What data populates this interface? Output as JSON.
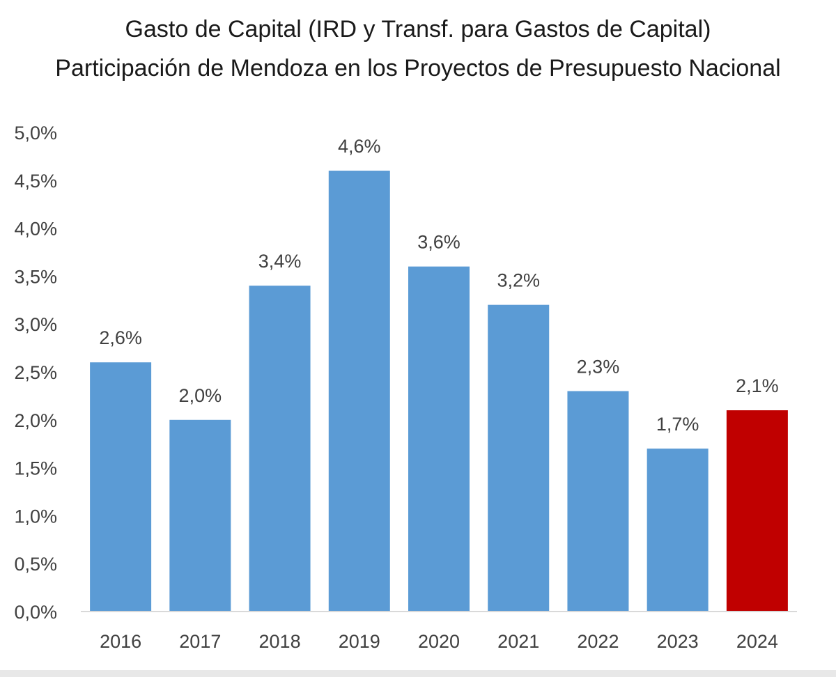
{
  "chart_data": {
    "type": "bar",
    "title": "Gasto de Capital (IRD y Transf. para Gastos de Capital)",
    "subtitle": "Participación de Mendoza en los Proyectos de Presupuesto Nacional",
    "xlabel": "",
    "ylabel": "",
    "categories": [
      "2016",
      "2017",
      "2018",
      "2019",
      "2020",
      "2021",
      "2022",
      "2023",
      "2024"
    ],
    "values": [
      2.6,
      2.0,
      3.4,
      4.6,
      3.6,
      3.2,
      2.3,
      1.7,
      2.1
    ],
    "value_labels": [
      "2,6%",
      "2,0%",
      "3,4%",
      "4,6%",
      "3,6%",
      "3,2%",
      "2,3%",
      "1,7%",
      "2,1%"
    ],
    "ylim": [
      0,
      5
    ],
    "yticks": [
      0,
      0.5,
      1,
      1.5,
      2,
      2.5,
      3,
      3.5,
      4,
      4.5,
      5
    ],
    "ytick_labels": [
      "0,0%",
      "0,5%",
      "1,0%",
      "1,5%",
      "2,0%",
      "2,5%",
      "3,0%",
      "3,5%",
      "4,0%",
      "4,5%",
      "5,0%"
    ],
    "grid": false,
    "legend": "none",
    "colors": {
      "bar": "#5b9bd5",
      "highlight": "#c00000",
      "highlight_category": "2024",
      "text": "#404040",
      "axis": "#d9d9d9"
    }
  }
}
